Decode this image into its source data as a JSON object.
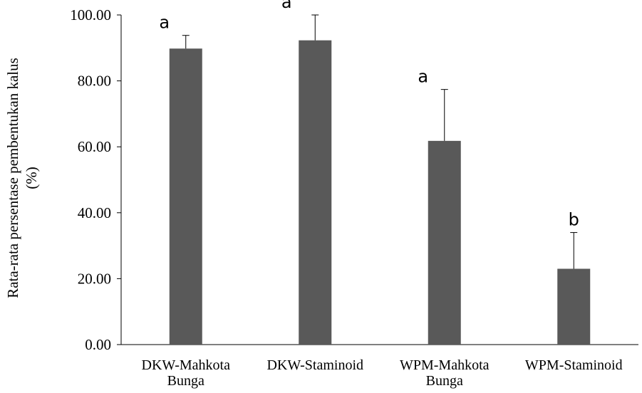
{
  "chart_data": {
    "type": "bar",
    "categories": [
      [
        "DKW-Mahkota",
        "Bunga"
      ],
      [
        "DKW-Staminoid"
      ],
      [
        "WPM-Mahkota",
        "Bunga"
      ],
      [
        "WPM-Staminoid"
      ]
    ],
    "values": [
      89.8,
      92.3,
      61.8,
      23.0
    ],
    "error_upper": [
      4.0,
      7.7,
      15.6,
      11.0
    ],
    "significance_labels": [
      "a",
      "a",
      "a",
      "b"
    ],
    "ylabel": [
      "Rata-rata persentase pembentukan kalus",
      "(%)"
    ],
    "xlabel": "",
    "ylim": [
      0,
      100
    ],
    "yticks": [
      "0.00",
      "20.00",
      "40.00",
      "60.00",
      "80.00",
      "100.00"
    ],
    "grid": false,
    "legend": "none",
    "bar_color": "#595959",
    "axis_color": "#000000"
  }
}
